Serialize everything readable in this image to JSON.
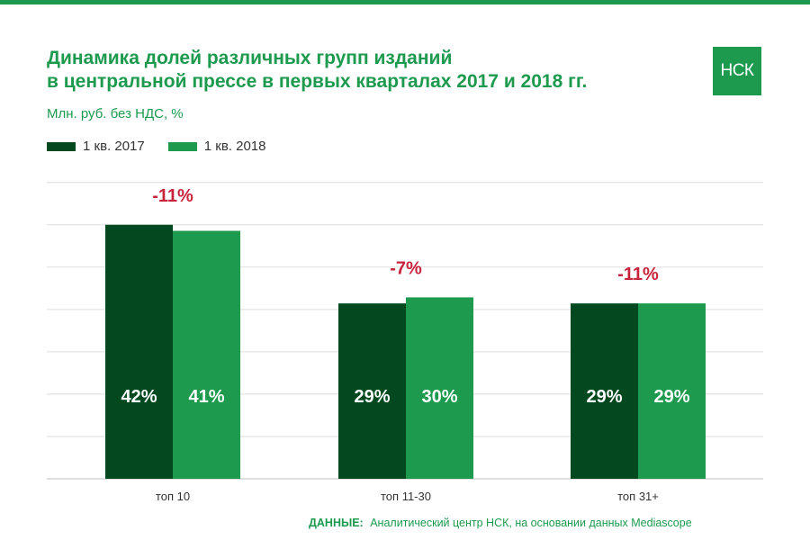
{
  "header": {
    "title_line1": "Динамика долей различных групп изданий",
    "title_line2": "в центральной прессе в первых кварталах 2017 и 2018 гг.",
    "subtitle": "Млн. руб. без НДС, %",
    "logo_text": "НСК"
  },
  "colors": {
    "accent": "#1d9a4e",
    "series_2017": "#03491f",
    "series_2018": "#1d9a4e",
    "change_label": "#c8243e"
  },
  "footer": {
    "source_label": "ДАННЫЕ:",
    "source_text": "Аналитический центр НСК, на основании данных Mediascope"
  },
  "chart_data": {
    "type": "bar",
    "categories": [
      "топ 10",
      "топ 11-30",
      "топ 31+"
    ],
    "series": [
      {
        "name": "1 кв. 2017",
        "values": [
          42,
          29,
          29
        ],
        "labels": [
          "42%",
          "29%",
          "29%"
        ]
      },
      {
        "name": "1 кв. 2018",
        "values": [
          41,
          30,
          29
        ],
        "labels": [
          "41%",
          "30%",
          "29%"
        ]
      }
    ],
    "changes": [
      "-11%",
      "-7%",
      "-11%"
    ],
    "ylim": [
      0,
      50
    ],
    "grid": true,
    "legend": "top-left"
  }
}
